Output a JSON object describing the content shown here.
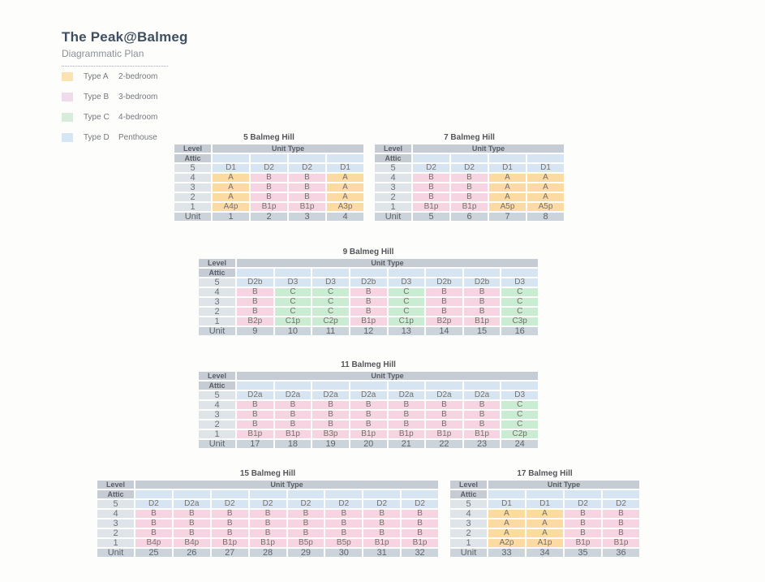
{
  "page": {
    "title": "The Peak@Balmeg",
    "subtitle": "Diagrammatic Plan"
  },
  "legend": [
    {
      "label": "Type A",
      "desc": "2-bedroom",
      "swatch": "#fbe2b3"
    },
    {
      "label": "Type B",
      "desc": "3-bedroom",
      "swatch": "#efdceb"
    },
    {
      "label": "Type C",
      "desc": "4-bedroom",
      "swatch": "#d7eddc"
    },
    {
      "label": "Type D",
      "desc": "Penthouse",
      "swatch": "#d7e6f5"
    }
  ],
  "table_labels": {
    "level": "Level",
    "unit_type": "Unit Type",
    "attic": "Attic",
    "unit": "Unit"
  },
  "type_colors": {
    "A": "#fcdba3",
    "B": "#f7d4e2",
    "C": "#c9ecd3",
    "D": "#d7e5f3"
  },
  "buildings": [
    {
      "title": "5 Balmeg Hill",
      "levels": [
        "5",
        "4",
        "3",
        "2",
        "1"
      ],
      "rows": [
        [
          "D1",
          "D2",
          "D2",
          "D1"
        ],
        [
          "A",
          "B",
          "B",
          "A"
        ],
        [
          "A",
          "B",
          "B",
          "A"
        ],
        [
          "A",
          "B",
          "B",
          "A"
        ],
        [
          "A4p",
          "B1p",
          "B1p",
          "A3p"
        ]
      ],
      "units": [
        "1",
        "2",
        "3",
        "4"
      ]
    },
    {
      "title": "7 Balmeg Hill",
      "levels": [
        "5",
        "4",
        "3",
        "2",
        "1"
      ],
      "rows": [
        [
          "D2",
          "D2",
          "D1",
          "D1"
        ],
        [
          "B",
          "B",
          "A",
          "A"
        ],
        [
          "B",
          "B",
          "A",
          "A"
        ],
        [
          "B",
          "B",
          "A",
          "A"
        ],
        [
          "B1p",
          "B1p",
          "A5p",
          "A5p"
        ]
      ],
      "units": [
        "5",
        "6",
        "7",
        "8"
      ]
    },
    {
      "title": "9 Balmeg Hill",
      "levels": [
        "5",
        "4",
        "3",
        "2",
        "1"
      ],
      "rows": [
        [
          "D2b",
          "D3",
          "D3",
          "D2b",
          "D3",
          "D2b",
          "D2b",
          "D3"
        ],
        [
          "B",
          "C",
          "C",
          "B",
          "C",
          "B",
          "B",
          "C"
        ],
        [
          "B",
          "C",
          "C",
          "B",
          "C",
          "B",
          "B",
          "C"
        ],
        [
          "B",
          "C",
          "C",
          "B",
          "C",
          "B",
          "B",
          "C"
        ],
        [
          "B2p",
          "C1p",
          "C2p",
          "B1p",
          "C1p",
          "B2p",
          "B1p",
          "C3p"
        ]
      ],
      "units": [
        "9",
        "10",
        "11",
        "12",
        "13",
        "14",
        "15",
        "16"
      ]
    },
    {
      "title": "11 Balmeg Hill",
      "levels": [
        "5",
        "4",
        "3",
        "2",
        "1"
      ],
      "rows": [
        [
          "D2a",
          "D2a",
          "D2a",
          "D2a",
          "D2a",
          "D2a",
          "D2a",
          "D3"
        ],
        [
          "B",
          "B",
          "B",
          "B",
          "B",
          "B",
          "B",
          "C"
        ],
        [
          "B",
          "B",
          "B",
          "B",
          "B",
          "B",
          "B",
          "C"
        ],
        [
          "B",
          "B",
          "B",
          "B",
          "B",
          "B",
          "B",
          "C"
        ],
        [
          "B1p",
          "B1p",
          "B3p",
          "B1p",
          "B1p",
          "B1p",
          "B1p",
          "C2p"
        ]
      ],
      "units": [
        "17",
        "18",
        "19",
        "20",
        "21",
        "22",
        "23",
        "24"
      ]
    },
    {
      "title": "15 Balmeg Hill",
      "levels": [
        "5",
        "4",
        "3",
        "2",
        "1"
      ],
      "rows": [
        [
          "D2",
          "D2a",
          "D2",
          "D2",
          "D2",
          "D2",
          "D2",
          "D2"
        ],
        [
          "B",
          "B",
          "B",
          "B",
          "B",
          "B",
          "B",
          "B"
        ],
        [
          "B",
          "B",
          "B",
          "B",
          "B",
          "B",
          "B",
          "B"
        ],
        [
          "B",
          "B",
          "B",
          "B",
          "B",
          "B",
          "B",
          "B"
        ],
        [
          "B4p",
          "B4p",
          "B1p",
          "B1p",
          "B5p",
          "B5p",
          "B1p",
          "B1p"
        ]
      ],
      "units": [
        "25",
        "26",
        "27",
        "28",
        "29",
        "30",
        "31",
        "32"
      ]
    },
    {
      "title": "17 Balmeg Hill",
      "levels": [
        "5",
        "4",
        "3",
        "2",
        "1"
      ],
      "rows": [
        [
          "D1",
          "D1",
          "D2",
          "D2"
        ],
        [
          "A",
          "A",
          "B",
          "B"
        ],
        [
          "A",
          "A",
          "B",
          "B"
        ],
        [
          "A",
          "A",
          "B",
          "B"
        ],
        [
          "A2p",
          "A1p",
          "B1p",
          "B1p"
        ]
      ],
      "units": [
        "33",
        "34",
        "35",
        "36"
      ]
    }
  ]
}
